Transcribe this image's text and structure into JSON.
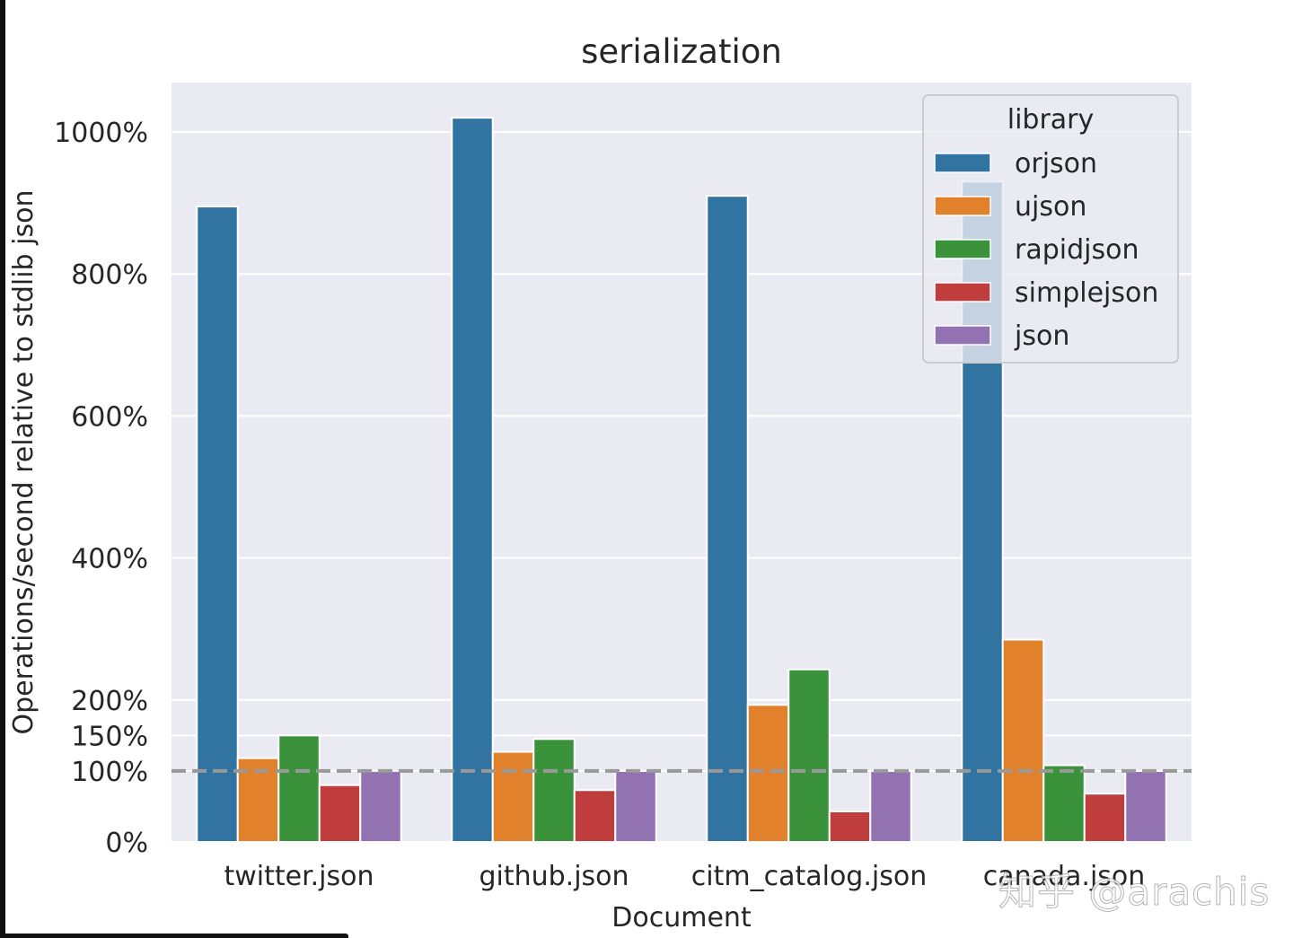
{
  "chart_data": {
    "type": "bar",
    "title": "serialization",
    "xlabel": "Document",
    "ylabel": "Operations/second relative to stdlib json",
    "categories": [
      "twitter.json",
      "github.json",
      "citm_catalog.json",
      "canada.json"
    ],
    "series": [
      {
        "name": "orjson",
        "color": "#3274a1",
        "values": [
          895,
          1020,
          910,
          930
        ]
      },
      {
        "name": "ujson",
        "color": "#e1812c",
        "values": [
          118,
          127,
          193,
          285
        ]
      },
      {
        "name": "rapidjson",
        "color": "#3a923a",
        "values": [
          150,
          145,
          243,
          108
        ]
      },
      {
        "name": "simplejson",
        "color": "#c03d3e",
        "values": [
          80,
          73,
          43,
          68
        ]
      },
      {
        "name": "json",
        "color": "#9372b2",
        "values": [
          100,
          100,
          100,
          100
        ]
      }
    ],
    "yticks": [
      {
        "value": 0,
        "label": "0%"
      },
      {
        "value": 100,
        "label": "100%"
      },
      {
        "value": 150,
        "label": "150%"
      },
      {
        "value": 200,
        "label": "200%"
      },
      {
        "value": 400,
        "label": "400%"
      },
      {
        "value": 600,
        "label": "600%"
      },
      {
        "value": 800,
        "label": "800%"
      },
      {
        "value": 1000,
        "label": "1000%"
      }
    ],
    "ylim": [
      0,
      1070
    ],
    "reference_line": {
      "value": 100,
      "style": "dashed",
      "color": "#999999"
    },
    "legend": {
      "title": "library",
      "placement": "top-right"
    },
    "grid": true,
    "background": "#eaeaf2"
  },
  "watermark": "知乎 @arachis"
}
